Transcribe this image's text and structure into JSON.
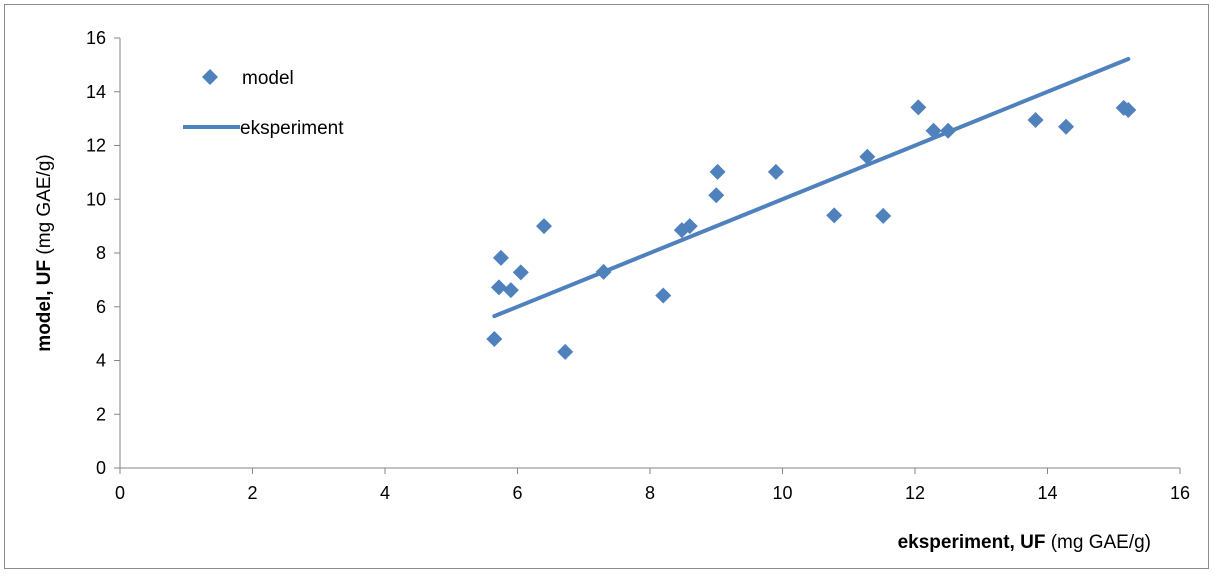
{
  "chart_data": {
    "type": "scatter",
    "title": "",
    "x_axis": {
      "label_bold": "eksperiment, UF",
      "label_unit": " (mg GAE/g)",
      "range": [
        0,
        16
      ],
      "ticks": [
        "0",
        "2",
        "4",
        "6",
        "8",
        "10",
        "12",
        "14",
        "16"
      ]
    },
    "y_axis": {
      "label_bold": "model, UF",
      "label_unit": " (mg GAE/g)",
      "range": [
        0,
        16
      ],
      "ticks": [
        "0",
        "2",
        "4",
        "6",
        "8",
        "10",
        "12",
        "14",
        "16"
      ]
    },
    "grid": false,
    "legend_position": "top-left",
    "series": [
      {
        "name": "model",
        "kind": "scatter",
        "marker": "diamond",
        "color": "#4f81bd",
        "points": [
          [
            5.65,
            4.8
          ],
          [
            5.72,
            6.72
          ],
          [
            5.75,
            7.82
          ],
          [
            5.9,
            6.62
          ],
          [
            6.05,
            7.28
          ],
          [
            6.4,
            9.0
          ],
          [
            6.72,
            4.32
          ],
          [
            7.3,
            7.3
          ],
          [
            8.2,
            6.42
          ],
          [
            8.48,
            8.85
          ],
          [
            8.6,
            9.0
          ],
          [
            9.0,
            10.15
          ],
          [
            9.02,
            11.02
          ],
          [
            9.9,
            11.02
          ],
          [
            10.78,
            9.4
          ],
          [
            11.28,
            11.58
          ],
          [
            11.52,
            9.38
          ],
          [
            12.05,
            13.42
          ],
          [
            12.28,
            12.55
          ],
          [
            12.5,
            12.55
          ],
          [
            13.82,
            12.95
          ],
          [
            14.28,
            12.7
          ],
          [
            15.15,
            13.4
          ],
          [
            15.22,
            13.32
          ]
        ]
      },
      {
        "name": "eksperiment",
        "kind": "line",
        "color": "#4f81bd",
        "points": [
          [
            5.65,
            5.65
          ],
          [
            15.22,
            15.22
          ]
        ]
      }
    ]
  }
}
